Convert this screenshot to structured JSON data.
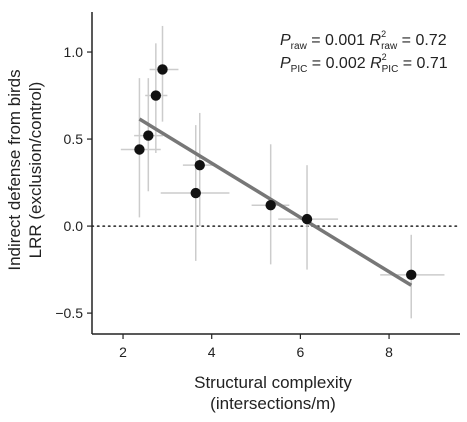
{
  "chart_data": {
    "type": "scatter",
    "title": "",
    "xlabel_lines": [
      "Structural complexity",
      "(intersections/m)"
    ],
    "ylabel_lines": [
      "Indirect defense from birds",
      "LRR (exclusion/control)"
    ],
    "xlim": [
      1.3,
      9.6
    ],
    "ylim": [
      -0.62,
      1.23
    ],
    "x_ticks": [
      2,
      4,
      6,
      8
    ],
    "x_tick_labels": [
      "2",
      "4",
      "6",
      "8"
    ],
    "y_ticks": [
      -0.5,
      0.0,
      0.5,
      1.0
    ],
    "y_tick_labels": [
      "−0.5",
      "0.0",
      "0.5",
      "1.0"
    ],
    "grid": false,
    "reference_line": {
      "y": 0.0,
      "style": "dotted"
    },
    "points": [
      {
        "x": 2.37,
        "y": 0.44,
        "x_low": 1.95,
        "x_high": 2.85,
        "y_low": 0.05,
        "y_high": 0.85
      },
      {
        "x": 2.57,
        "y": 0.52,
        "x_low": 2.25,
        "x_high": 2.9,
        "y_low": 0.2,
        "y_high": 0.85
      },
      {
        "x": 2.74,
        "y": 0.75,
        "x_low": 2.5,
        "x_high": 3.0,
        "y_low": 0.42,
        "y_high": 1.05
      },
      {
        "x": 2.89,
        "y": 0.9,
        "x_low": 2.6,
        "x_high": 3.25,
        "y_low": 0.6,
        "y_high": 1.15
      },
      {
        "x": 3.64,
        "y": 0.19,
        "x_low": 2.85,
        "x_high": 4.4,
        "y_low": -0.2,
        "y_high": 0.58
      },
      {
        "x": 3.73,
        "y": 0.35,
        "x_low": 3.35,
        "x_high": 4.1,
        "y_low": 0.0,
        "y_high": 0.65
      },
      {
        "x": 5.33,
        "y": 0.12,
        "x_low": 4.9,
        "x_high": 5.75,
        "y_low": -0.22,
        "y_high": 0.47
      },
      {
        "x": 6.15,
        "y": 0.04,
        "x_low": 5.5,
        "x_high": 6.85,
        "y_low": -0.25,
        "y_high": 0.35
      },
      {
        "x": 8.5,
        "y": -0.28,
        "x_low": 7.8,
        "x_high": 9.25,
        "y_low": -0.53,
        "y_high": -0.05
      }
    ],
    "fit_line": {
      "x": [
        2.37,
        8.5
      ],
      "y": [
        0.615,
        -0.34
      ]
    },
    "colors": {
      "points": "#111111",
      "error_bars": "#cccccc",
      "fit_line": "#777777",
      "axes": "#222222"
    },
    "stats": [
      {
        "p_symbol": "P",
        "p_sub": "raw",
        "p_value": " = 0.001 ",
        "r_symbol": "R",
        "r_sup": "2",
        "r_sub": "raw",
        "r_value": " = 0.72"
      },
      {
        "p_symbol": "P",
        "p_sub": "PIC",
        "p_value": " = 0.002 ",
        "r_symbol": "R",
        "r_sup": "2",
        "r_sub": "PIC",
        "r_value": " = 0.71"
      }
    ]
  }
}
